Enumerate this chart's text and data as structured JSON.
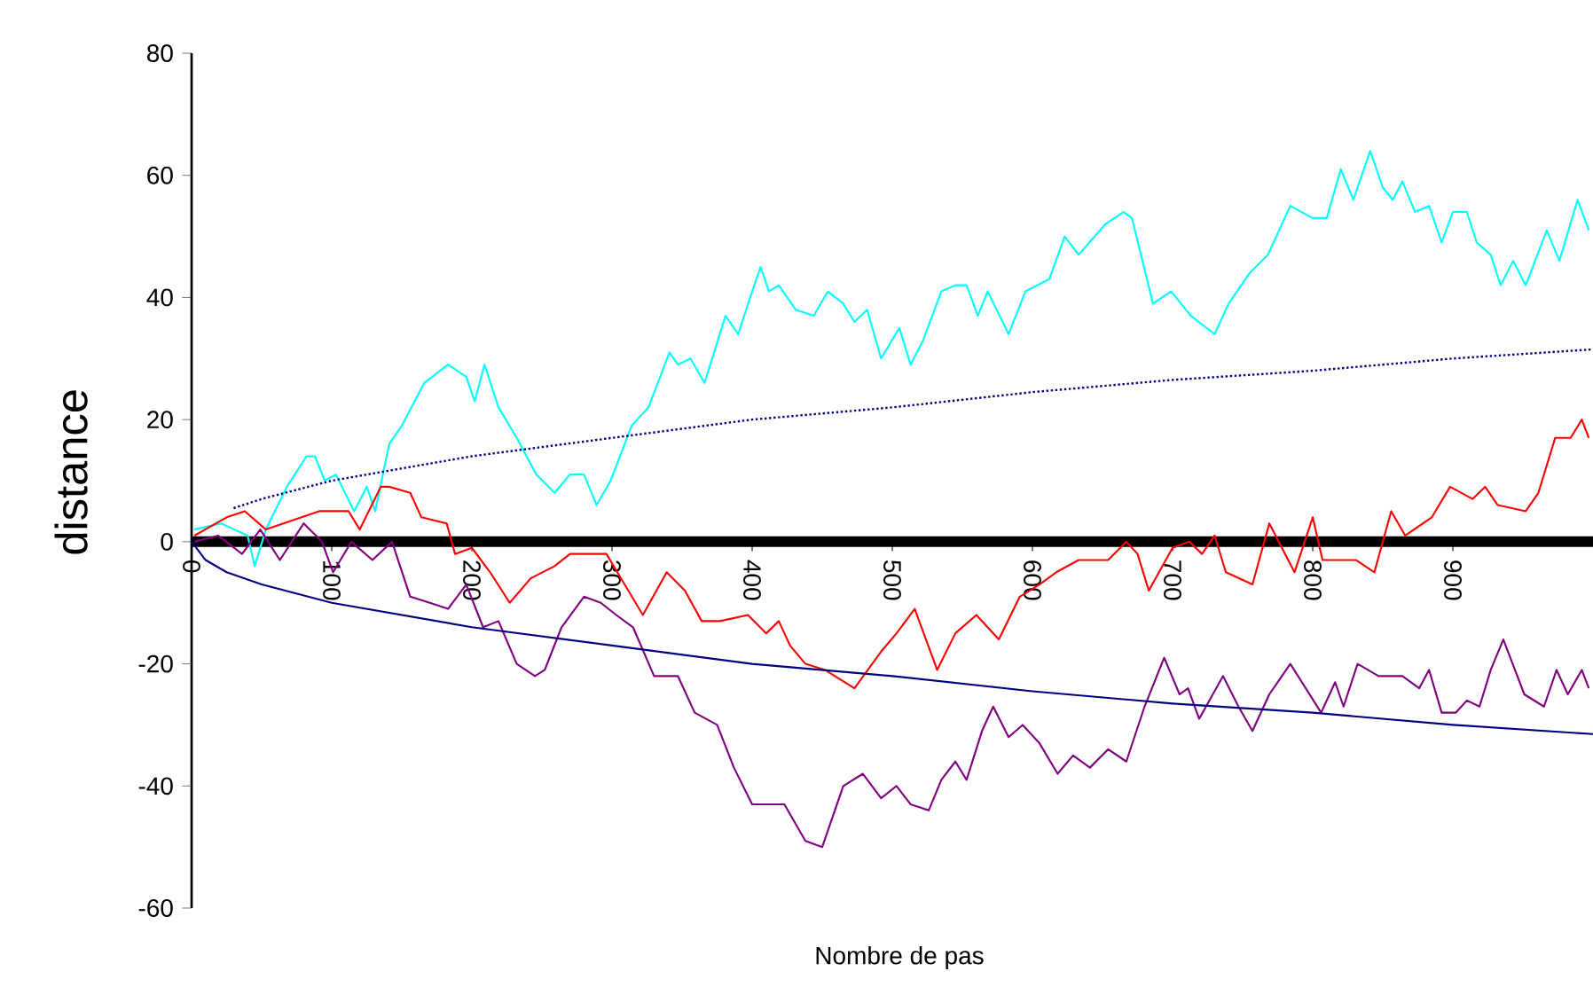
{
  "chart_data": {
    "type": "line",
    "xlabel": "Nombre de pas",
    "ylabel": "distance",
    "xlim": [
      0,
      1000
    ],
    "ylim": [
      -60,
      80
    ],
    "xticks": [
      0,
      100,
      200,
      300,
      400,
      500,
      600,
      700,
      800,
      900
    ],
    "yticks": [
      -60,
      -40,
      -20,
      0,
      20,
      40,
      60,
      80
    ],
    "grid": false,
    "series": [
      {
        "color": "#00ffff",
        "x": [
          2,
          21,
          40,
          45,
          53,
          68,
          82,
          88,
          95,
          103,
          116,
          125,
          131,
          141,
          150,
          166,
          183,
          196,
          202,
          209,
          219,
          232,
          246,
          259,
          270,
          280,
          289,
          299,
          314,
          326,
          341,
          347,
          356,
          366,
          381,
          390,
          400,
          406,
          412,
          419,
          431,
          444,
          454,
          465,
          473,
          482,
          492,
          505,
          513,
          522,
          535,
          545,
          553,
          561,
          568,
          583,
          595,
          612,
          623,
          633,
          652,
          665,
          671,
          686,
          699,
          713,
          730,
          740,
          755,
          768,
          784,
          800,
          810,
          820,
          829,
          841,
          850,
          857,
          864,
          873,
          883,
          892,
          900,
          910,
          917,
          927,
          934,
          943,
          952,
          967,
          976,
          989,
          997
        ],
        "values": [
          2,
          3,
          1,
          -4,
          2,
          9,
          14,
          14,
          10,
          11,
          5,
          9,
          5,
          16,
          19,
          26,
          29,
          27,
          23,
          29,
          22,
          17,
          11,
          8,
          11,
          11,
          6,
          10,
          19,
          22,
          31,
          29,
          30,
          26,
          37,
          34,
          41,
          45,
          41,
          42,
          38,
          37,
          41,
          39,
          36,
          38,
          30,
          35,
          29,
          33,
          41,
          42,
          42,
          37,
          41,
          34,
          41,
          43,
          50,
          47,
          52,
          54,
          53,
          39,
          41,
          37,
          34,
          39,
          44,
          47,
          55,
          53,
          53,
          61,
          56,
          64,
          58,
          56,
          59,
          54,
          55,
          49,
          54,
          54,
          49,
          47,
          42,
          46,
          42,
          51,
          46,
          56,
          51
        ]
      },
      {
        "color": "#ff0000",
        "x": [
          2,
          25,
          38,
          53,
          91,
          112,
          120,
          135,
          141,
          156,
          164,
          182,
          188,
          200,
          213,
          227,
          242,
          259,
          270,
          284,
          296,
          309,
          322,
          339,
          352,
          364,
          377,
          397,
          410,
          419,
          427,
          438,
          452,
          473,
          492,
          503,
          516,
          532,
          545,
          560,
          576,
          591,
          605,
          617,
          633,
          654,
          667,
          675,
          683,
          700,
          712,
          721,
          730,
          738,
          757,
          769,
          787,
          800,
          807,
          831,
          844,
          856,
          866,
          885,
          898,
          914,
          923,
          932,
          952,
          961,
          973,
          984,
          992,
          997
        ],
        "values": [
          1,
          4,
          5,
          2,
          5,
          5,
          2,
          9,
          9,
          8,
          4,
          3,
          -2,
          -1,
          -5,
          -10,
          -6,
          -4,
          -2,
          -2,
          -2,
          -7,
          -12,
          -5,
          -8,
          -13,
          -13,
          -12,
          -15,
          -13,
          -17,
          -20,
          -21,
          -24,
          -18,
          -15,
          -11,
          -21,
          -15,
          -12,
          -16,
          -9,
          -7,
          -5,
          -3,
          -3,
          0,
          -2,
          -8,
          -1,
          0,
          -2,
          1,
          -5,
          -7,
          3,
          -5,
          4,
          -3,
          -3,
          -5,
          5,
          1,
          4,
          9,
          7,
          9,
          6,
          5,
          8,
          17,
          17,
          20,
          17
        ]
      },
      {
        "color": "#800080",
        "x": [
          2,
          19,
          36,
          49,
          63,
          80,
          93,
          101,
          114,
          129,
          143,
          156,
          170,
          183,
          196,
          208,
          219,
          232,
          245,
          252,
          264,
          280,
          292,
          303,
          315,
          330,
          347,
          359,
          375,
          387,
          400,
          410,
          423,
          438,
          450,
          465,
          479,
          492,
          503,
          513,
          526,
          535,
          545,
          553,
          564,
          572,
          583,
          593,
          605,
          618,
          629,
          641,
          654,
          667,
          680,
          694,
          705,
          711,
          719,
          736,
          747,
          757,
          769,
          784,
          806,
          816,
          822,
          832,
          847,
          864,
          876,
          883,
          892,
          902,
          910,
          919,
          927,
          936,
          951,
          965,
          974,
          982,
          992,
          997
        ],
        "values": [
          0,
          1,
          -2,
          2,
          -3,
          3,
          0,
          -5,
          0,
          -3,
          0,
          -9,
          -10,
          -11,
          -7,
          -14,
          -13,
          -20,
          -22,
          -21,
          -14,
          -9,
          -10,
          -12,
          -14,
          -22,
          -22,
          -28,
          -30,
          -37,
          -43,
          -43,
          -43,
          -49,
          -50,
          -40,
          -38,
          -42,
          -40,
          -43,
          -44,
          -39,
          -36,
          -39,
          -31,
          -27,
          -32,
          -30,
          -33,
          -38,
          -35,
          -37,
          -34,
          -36,
          -27,
          -19,
          -25,
          -24,
          -29,
          -22,
          -27,
          -31,
          -25,
          -20,
          -28,
          -23,
          -27,
          -20,
          -22,
          -22,
          -24,
          -21,
          -28,
          -28,
          -26,
          -27,
          -21,
          -16,
          -25,
          -27,
          -21,
          -25,
          -21,
          -24
        ]
      },
      {
        "color": "#000080",
        "line_style": "dotted",
        "x": [
          30,
          50,
          100,
          200,
          300,
          400,
          500,
          600,
          700,
          800,
          900,
          1000
        ],
        "values": [
          5.5,
          7,
          10,
          14,
          17,
          20,
          22,
          24.5,
          26.5,
          28,
          30,
          31.5
        ]
      },
      {
        "color": "#000080",
        "x": [
          0,
          10,
          25,
          50,
          100,
          200,
          300,
          400,
          500,
          600,
          700,
          800,
          900,
          1000
        ],
        "values": [
          0,
          -3,
          -5,
          -7,
          -10,
          -14,
          -17,
          -20,
          -22,
          -24.5,
          -26.5,
          -28,
          -30,
          -31.5
        ]
      }
    ]
  }
}
